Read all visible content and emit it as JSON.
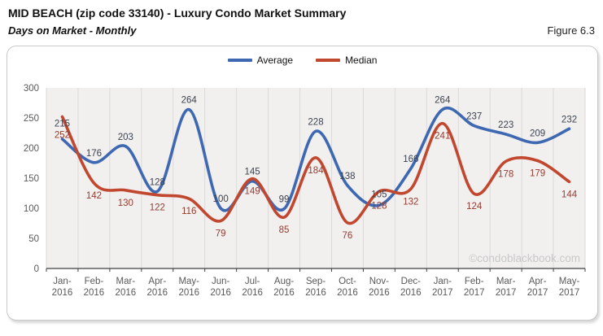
{
  "header": {
    "title": "MID BEACH (zip code 33140) - Luxury Condo Market Summary",
    "subtitle": "Days on Market - Monthly",
    "figure_label": "Figure 6.3"
  },
  "watermark": "©condoblackbook.com",
  "colors": {
    "average_line": "#3e68b1",
    "median_line": "#c1472e",
    "average_label": "#3d4350",
    "median_label": "#953b30",
    "plot_background": "#f1f0ef",
    "gridline": "#dbdad9",
    "axis": "#404040",
    "tick_label": "#595959",
    "watermark": "#c9c9c9",
    "legend_text": "#111111"
  },
  "chart_data": {
    "type": "line",
    "title": "Days on Market - Monthly",
    "categories": [
      "Jan-2016",
      "Feb-2016",
      "Mar-2016",
      "Apr-2016",
      "May-2016",
      "Jun-2016",
      "Jul-2016",
      "Aug-2016",
      "Sep-2016",
      "Oct-2016",
      "Nov-2016",
      "Dec-2016",
      "Jan-2017",
      "Feb-2017",
      "Mar-2017",
      "Apr-2017",
      "May-2017"
    ],
    "series": [
      {
        "name": "Average",
        "values": [
          215,
          176,
          203,
          128,
          264,
          100,
          145,
          99,
          228,
          138,
          105,
          166,
          264,
          237,
          223,
          209,
          232
        ]
      },
      {
        "name": "Median",
        "values": [
          252,
          142,
          130,
          122,
          116,
          79,
          149,
          85,
          184,
          76,
          128,
          132,
          241,
          124,
          178,
          179,
          144
        ]
      }
    ],
    "xlabel": "",
    "ylabel": "",
    "ylim": [
      0,
      300
    ],
    "yticks": [
      0,
      50,
      100,
      150,
      200,
      250,
      300
    ],
    "grid": "vertical-only",
    "legend_position": "top-center",
    "smooth": true,
    "data_labels": true
  }
}
